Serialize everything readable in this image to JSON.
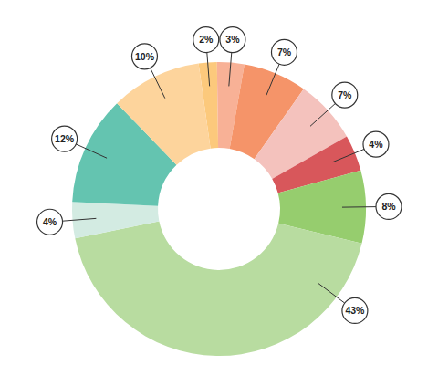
{
  "chart_data": {
    "type": "donut",
    "values": [
      2,
      3,
      7,
      7,
      4,
      8,
      43,
      4,
      12,
      10
    ],
    "value_labels": [
      "2%",
      "3%",
      "7%",
      "7%",
      "4%",
      "8%",
      "43%",
      "4%",
      "12%",
      "10%"
    ],
    "colors": [
      "#fcc97c",
      "#f8b196",
      "#f59469",
      "#f4c2bd",
      "#d8575b",
      "#96cd6e",
      "#b8dca0",
      "#d3ebe2",
      "#64c4b0",
      "#fdd49c"
    ],
    "data_labels": true
  }
}
